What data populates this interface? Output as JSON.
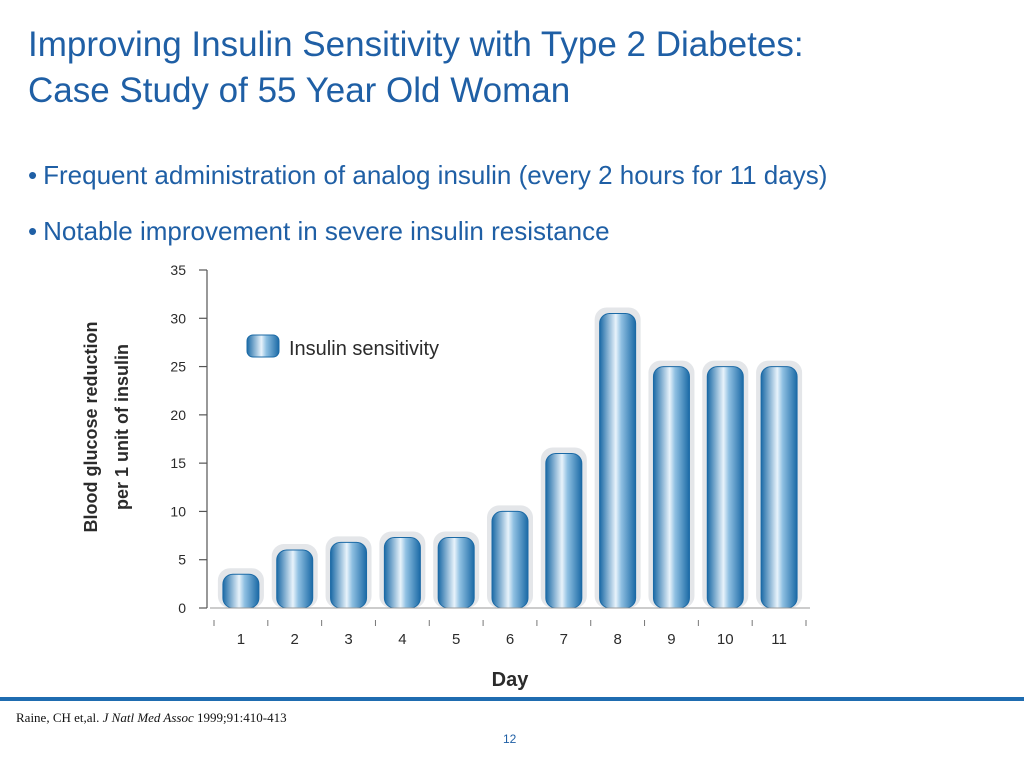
{
  "slide": {
    "title_line1": "Improving Insulin Sensitivity with Type 2 Diabetes:",
    "title_line2": "Case Study of 55 Year Old Woman",
    "bullets": [
      "Frequent administration of analog insulin (every 2 hours for 11 days)",
      "Notable improvement in severe insulin resistance"
    ],
    "citation": {
      "authors": "Raine, CH et,al.",
      "journal": "J Natl Med Assoc",
      "details": "1999;91:410-413"
    },
    "page_number": "12"
  },
  "chart_data": {
    "type": "bar",
    "categories": [
      "1",
      "2",
      "3",
      "4",
      "5",
      "6",
      "7",
      "8",
      "9",
      "10",
      "11"
    ],
    "series": [
      {
        "name": "Insulin sensitivity",
        "values": [
          3.5,
          6,
          6.8,
          7.3,
          7.3,
          10,
          16,
          30.5,
          25,
          25,
          25
        ]
      }
    ],
    "xlabel": "Day",
    "ylabel_line1": "Blood glucose reduction",
    "ylabel_line2": "per 1 unit of insulin",
    "ylim": [
      0,
      35
    ],
    "yticks": [
      0,
      5,
      10,
      15,
      20,
      25,
      30,
      35
    ],
    "grid": false,
    "legend_position": "top-left",
    "colors": {
      "bar_dark": "#1b6aa6",
      "bar_light": "#e8f3fb",
      "axis": "#555555",
      "text": "#2b2b2b"
    }
  }
}
